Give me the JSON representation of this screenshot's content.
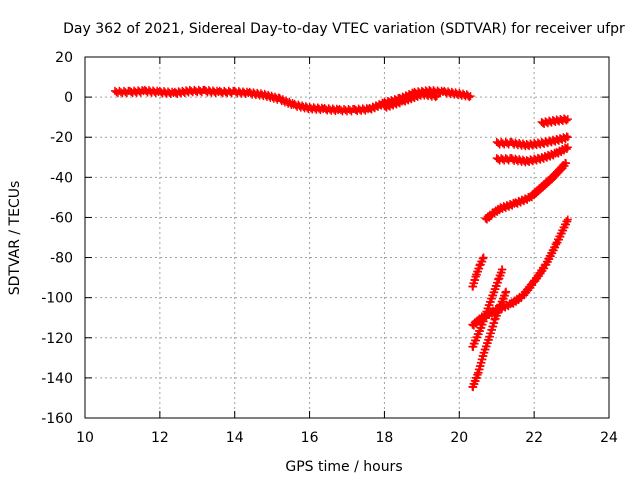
{
  "chart_data": {
    "type": "scatter",
    "title": "Day 362 of 2021, Sidereal Day-to-day VTEC variation (SDTVAR) for receiver ufpr",
    "xlabel": "GPS time / hours",
    "ylabel": "SDTVAR / TECUs",
    "xlim": [
      10,
      24
    ],
    "ylim": [
      -160,
      20
    ],
    "xticks": [
      10,
      12,
      14,
      16,
      18,
      20,
      22,
      24
    ],
    "yticks": [
      20,
      0,
      -20,
      -40,
      -60,
      -80,
      -100,
      -120,
      -140,
      -160
    ],
    "grid": true,
    "marker": "+",
    "color": "#ff0000",
    "series": [
      {
        "values": [
          [
            10.8,
            2.5
          ],
          [
            11.2,
            2.5
          ],
          [
            11.6,
            3.0
          ],
          [
            12.0,
            2.5
          ],
          [
            12.4,
            2.0
          ],
          [
            12.8,
            3.0
          ],
          [
            13.2,
            3.0
          ],
          [
            13.6,
            2.5
          ],
          [
            14.0,
            2.5
          ],
          [
            14.4,
            2.0
          ],
          [
            14.8,
            1.0
          ],
          [
            15.2,
            -1.0
          ],
          [
            15.6,
            -4.0
          ],
          [
            16.0,
            -5.5
          ],
          [
            16.4,
            -6.0
          ],
          [
            16.8,
            -6.5
          ],
          [
            17.2,
            -6.5
          ],
          [
            17.6,
            -6.0
          ],
          [
            18.0,
            -3.0
          ],
          [
            18.4,
            -1.0
          ],
          [
            18.8,
            2.0
          ],
          [
            19.2,
            3.0
          ],
          [
            19.6,
            2.5
          ],
          [
            20.0,
            1.5
          ],
          [
            20.3,
            0.5
          ]
        ]
      },
      {
        "values": [
          [
            18.0,
            -5.0
          ],
          [
            18.5,
            -2.0
          ],
          [
            19.0,
            1.5
          ],
          [
            19.4,
            0.5
          ]
        ]
      },
      {
        "values": [
          [
            22.2,
            -13.0
          ],
          [
            22.5,
            -12.0
          ],
          [
            22.9,
            -11.0
          ]
        ]
      },
      {
        "values": [
          [
            21.0,
            -23.0
          ],
          [
            21.4,
            -23.0
          ],
          [
            21.8,
            -24.0
          ],
          [
            22.2,
            -23.0
          ],
          [
            22.6,
            -21.5
          ],
          [
            22.9,
            -20.0
          ]
        ]
      },
      {
        "values": [
          [
            21.0,
            -31.0
          ],
          [
            21.4,
            -31.0
          ],
          [
            21.8,
            -32.0
          ],
          [
            22.2,
            -30.5
          ],
          [
            22.6,
            -28.0
          ],
          [
            22.9,
            -25.0
          ]
        ]
      },
      {
        "values": [
          [
            20.7,
            -61.0
          ],
          [
            20.9,
            -58.0
          ],
          [
            21.1,
            -55.5
          ],
          [
            21.5,
            -53.0
          ],
          [
            21.9,
            -50.0
          ],
          [
            22.2,
            -45.0
          ],
          [
            22.5,
            -40.0
          ],
          [
            22.85,
            -33.0
          ]
        ]
      },
      {
        "values": [
          [
            20.35,
            -114.0
          ],
          [
            20.6,
            -110.0
          ],
          [
            21.0,
            -106.0
          ],
          [
            21.4,
            -103.0
          ],
          [
            21.7,
            -99.0
          ],
          [
            22.0,
            -92.0
          ],
          [
            22.3,
            -84.0
          ],
          [
            22.6,
            -73.0
          ],
          [
            22.9,
            -61.0
          ]
        ]
      },
      {
        "values": [
          [
            20.35,
            -95.0
          ],
          [
            20.45,
            -89.0
          ],
          [
            20.55,
            -84.0
          ],
          [
            20.65,
            -80.0
          ]
        ]
      },
      {
        "values": [
          [
            20.35,
            -125.0
          ],
          [
            20.6,
            -114.0
          ],
          [
            20.85,
            -101.0
          ],
          [
            21.05,
            -91.0
          ],
          [
            21.15,
            -86.0
          ]
        ]
      },
      {
        "values": [
          [
            20.35,
            -145.0
          ],
          [
            20.5,
            -138.0
          ],
          [
            20.65,
            -128.0
          ],
          [
            20.8,
            -120.0
          ],
          [
            20.95,
            -111.0
          ],
          [
            21.1,
            -104.0
          ],
          [
            21.25,
            -97.0
          ]
        ]
      }
    ]
  }
}
